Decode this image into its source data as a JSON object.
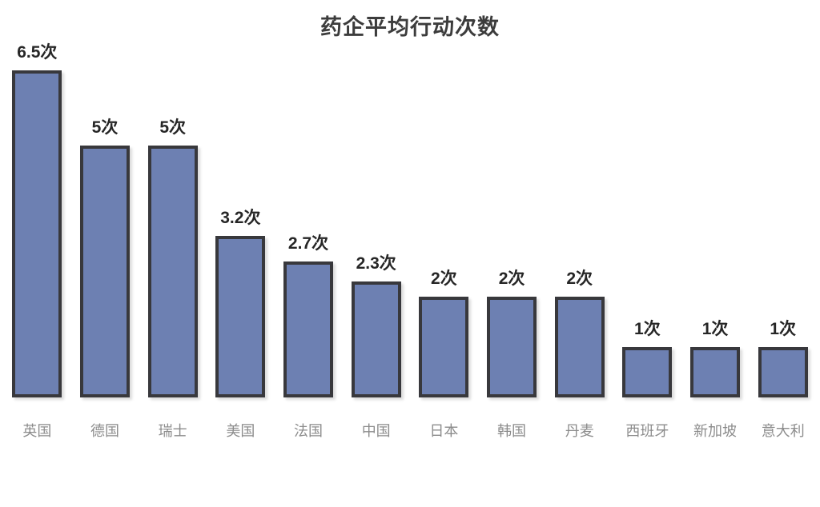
{
  "title": "药企平均行动次数",
  "chart_data": {
    "type": "bar",
    "title": "药企平均行动次数",
    "categories": [
      "英国",
      "德国",
      "瑞士",
      "美国",
      "法国",
      "中国",
      "日本",
      "韩国",
      "丹麦",
      "西班牙",
      "新加坡",
      "意大利"
    ],
    "values": [
      6.5,
      5,
      5,
      3.2,
      2.7,
      2.3,
      2,
      2,
      2,
      1,
      1,
      1
    ],
    "value_labels": [
      "6.5次",
      "5次",
      "5次",
      "3.2次",
      "2.7次",
      "2.3次",
      "2次",
      "2次",
      "2次",
      "1次",
      "1次",
      "1次"
    ],
    "unit": "次",
    "ylim": [
      0,
      7
    ],
    "grid": false,
    "legend": false,
    "axes_visible": false,
    "bar_color": "#6D80B2",
    "bar_border_color": "#38383C",
    "value_label_color": "#262626",
    "category_label_color": "#8C8C8C",
    "title_color": "#3C3C3C",
    "background_color": "#FFFFFF"
  }
}
